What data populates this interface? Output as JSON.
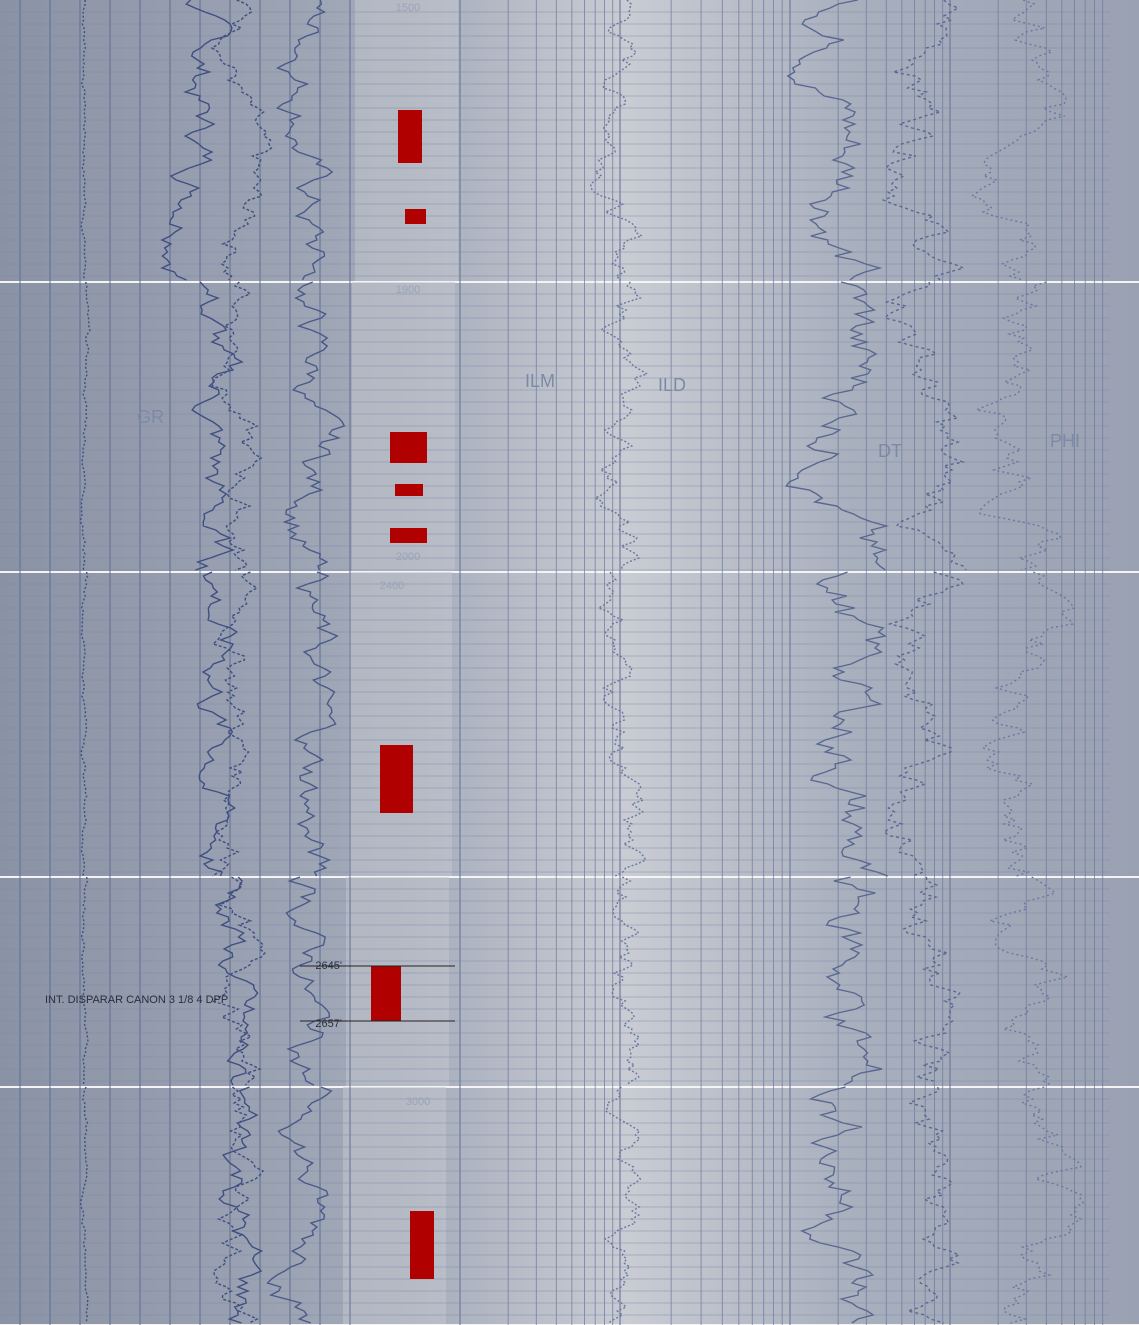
{
  "strips": [
    {
      "depth_label": "1500"
    },
    {
      "depth_label_top": "1900",
      "depth_label_bottom": "2000",
      "curve_labels": [
        "GR",
        "ILM",
        "ILD",
        "DT",
        "PHI"
      ]
    },
    {
      "depth_label": "2400"
    },
    {
      "interval_top": "2645'",
      "interval_bottom": "2657'",
      "note": "INT. DISPARAR CANON 3 1/8 4 DPP"
    },
    {
      "depth_label": "3000"
    }
  ]
}
